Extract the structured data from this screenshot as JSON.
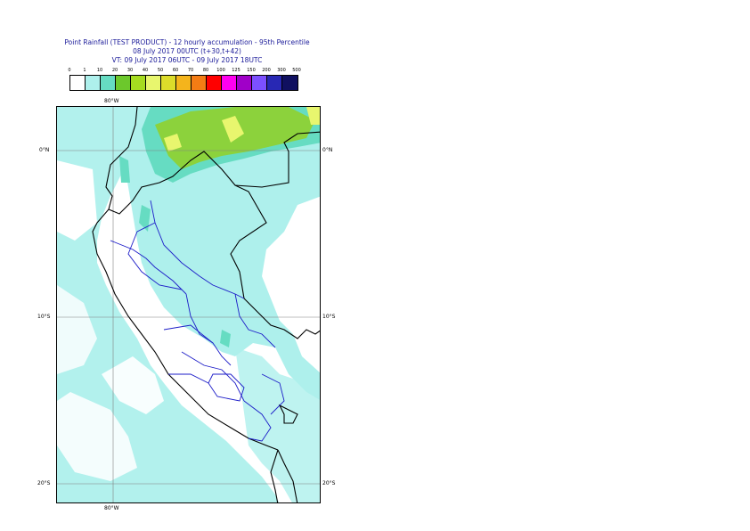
{
  "header": {
    "title_line1": "Point Rainfall (TEST PRODUCT) - 12 hourly accumulation - 95th Percentile",
    "title_line2": "08 July 2017 00UTC (t+30,t+42)",
    "title_line3": "VT: 09 July 2017 06UTC - 09 July 2017 18UTC"
  },
  "legend": {
    "thresholds": [
      "0",
      "1",
      "10",
      "20",
      "30",
      "40",
      "50",
      "60",
      "70",
      "80",
      "100",
      "125",
      "150",
      "200",
      "300",
      "500"
    ],
    "colors": [
      "#ffffff",
      "#aef0ec",
      "#66dcc2",
      "#6cc82c",
      "#a6dc20",
      "#e8f66e",
      "#dcdc2a",
      "#f4b41c",
      "#f47c14",
      "#ff0000",
      "#ff00f0",
      "#a000c8",
      "#7c50ff",
      "#2828b4",
      "#101060"
    ]
  },
  "map": {
    "lat_labels": [
      "0°N",
      "10°S",
      "20°S"
    ],
    "lon_label_top": "80°W",
    "lon_label_bottom": "80°W",
    "colors": {
      "ocean_rain": "#aef0ec",
      "medium_rain": "#66dcc2",
      "green_rain": "#8cd23c",
      "yellow_rain": "#e8f66e",
      "country_border": "#000000",
      "region_border": "#1c1cc8",
      "grid": "#808080"
    }
  }
}
